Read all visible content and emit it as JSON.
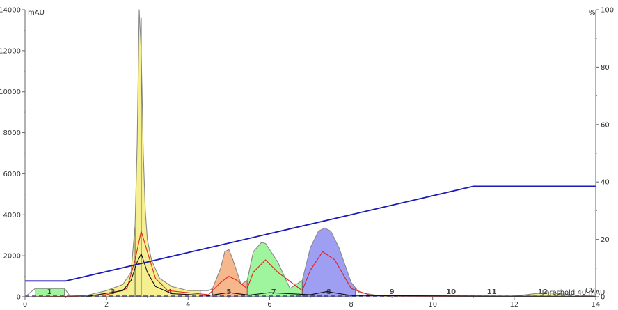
{
  "chart_data": {
    "type": "line",
    "x_unit": "CV",
    "y_left": {
      "unit": "mAU",
      "range": [
        0,
        14000
      ],
      "ticks": [
        0,
        2000,
        4000,
        6000,
        8000,
        10000,
        12000,
        14000
      ]
    },
    "y_right": {
      "unit": "%",
      "range": [
        0,
        100
      ],
      "ticks": [
        0,
        20,
        40,
        60,
        80,
        100
      ]
    },
    "x_range": [
      0,
      14
    ],
    "x_ticks": [
      0,
      2,
      4,
      6,
      8,
      10,
      12,
      14
    ],
    "threshold_label": "Threshold 40 mAU",
    "threshold_value": 40,
    "colors": {
      "uv_main": "#888888",
      "uv_secondary": "#e02020",
      "uv_third": "#101010",
      "gradient": "#1a1ab8",
      "baseline_dash": "#1a1ab8",
      "frac_yellow": "#f6ef8f",
      "frac_orange": "#f7b78d",
      "frac_green": "#9ef59e",
      "frac_blue": "#9e9ef3",
      "frac_divider": "#555555"
    },
    "fractions": [
      {
        "label": "1",
        "start": 0.25,
        "end": 0.97,
        "color": "frac_green"
      },
      {
        "label": "3",
        "start": 1.6,
        "end": 2.7,
        "color": "frac_yellow"
      },
      {
        "label": "4",
        "start": 2.7,
        "end": 4.3,
        "color": "frac_yellow"
      },
      {
        "label": "5",
        "start": 4.6,
        "end": 5.45,
        "color": "frac_orange"
      },
      {
        "label": "7",
        "start": 5.45,
        "end": 6.8,
        "color": "frac_green"
      },
      {
        "label": "8",
        "start": 6.8,
        "end": 8.1,
        "color": "frac_blue"
      },
      {
        "label": "9",
        "start": 8.8,
        "end": 9.2,
        "color": "frac_yellow"
      },
      {
        "label": "10",
        "start": 10.2,
        "end": 10.7,
        "color": "frac_yellow"
      },
      {
        "label": "11",
        "start": 11.0,
        "end": 11.5,
        "color": "frac_yellow"
      },
      {
        "label": "12",
        "start": 12.0,
        "end": 13.8,
        "color": "frac_yellow"
      }
    ],
    "fraction_label_positions": [
      0.6,
      2.15,
      3.55,
      5.0,
      6.1,
      7.45,
      9.0,
      10.45,
      11.45,
      12.7
    ],
    "series": [
      {
        "name": "",
        "axis": "left",
        "color_key": "uv_main",
        "x": [
          0,
          0.25,
          0.3,
          0.9,
          0.97,
          1.1,
          1.5,
          2.0,
          2.4,
          2.6,
          2.7,
          2.75,
          2.8,
          2.85,
          2.9,
          2.95,
          3.0,
          3.1,
          3.3,
          3.6,
          4.0,
          4.5,
          4.6,
          4.8,
          4.9,
          5.0,
          5.1,
          5.3,
          5.45,
          5.6,
          5.8,
          5.9,
          6.2,
          6.5,
          6.8,
          7.0,
          7.2,
          7.35,
          7.5,
          7.7,
          8.0,
          8.2,
          8.6,
          9.5,
          11.0,
          12.0,
          12.5,
          12.8,
          13.5,
          14.0
        ],
        "y": [
          0,
          400,
          400,
          400,
          400,
          40,
          60,
          300,
          600,
          1200,
          3500,
          7500,
          14000,
          12000,
          7000,
          4200,
          2800,
          1800,
          900,
          500,
          300,
          300,
          400,
          1400,
          2200,
          2300,
          1800,
          600,
          800,
          2200,
          2650,
          2600,
          1700,
          400,
          800,
          2400,
          3200,
          3350,
          3200,
          2400,
          700,
          200,
          80,
          30,
          20,
          30,
          150,
          200,
          80,
          30
        ]
      },
      {
        "name": "",
        "axis": "left",
        "color_key": "uv_secondary",
        "x": [
          0,
          1.0,
          2.0,
          2.5,
          2.7,
          2.85,
          3.0,
          3.2,
          3.5,
          4.5,
          4.8,
          5.0,
          5.2,
          5.45,
          5.6,
          5.9,
          6.2,
          6.8,
          7.0,
          7.3,
          7.6,
          8.0,
          8.5,
          14.0
        ],
        "y": [
          0,
          20,
          100,
          400,
          1800,
          3200,
          2200,
          900,
          300,
          100,
          700,
          1000,
          800,
          400,
          1200,
          1800,
          1200,
          300,
          1300,
          2200,
          1800,
          400,
          50,
          20
        ]
      },
      {
        "name": "",
        "axis": "left",
        "color_key": "uv_third",
        "x": [
          0,
          1.5,
          2.4,
          2.6,
          2.75,
          2.85,
          3.0,
          3.2,
          3.6,
          4.5,
          5.0,
          5.5,
          6.0,
          7.0,
          7.4,
          8.0,
          14.0
        ],
        "y": [
          0,
          10,
          300,
          800,
          1700,
          2100,
          1200,
          500,
          150,
          60,
          200,
          80,
          200,
          100,
          250,
          60,
          10
        ]
      },
      {
        "name": "",
        "axis": "right",
        "color_key": "gradient",
        "x": [
          0,
          1.0,
          11.0,
          14.0
        ],
        "y": [
          5.5,
          5.5,
          38.5,
          38.5
        ]
      }
    ]
  }
}
